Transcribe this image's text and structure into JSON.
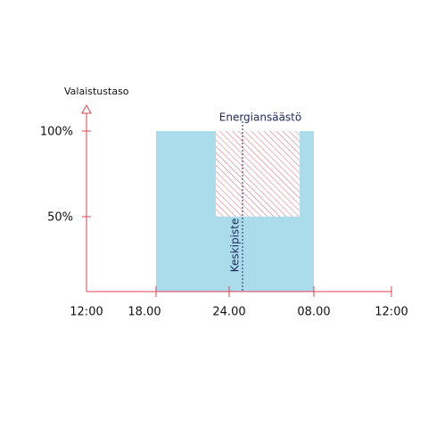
{
  "y_axis_label": "Valaistustaso",
  "y_labels": [
    "100%",
    "50%"
  ],
  "x_labels": [
    "12:00",
    "18.00",
    "24.00",
    "08.00",
    "12:00"
  ],
  "annotations": {
    "energy_saving": "Energiansäästö",
    "midpoint": "Keskipiste"
  }
}
